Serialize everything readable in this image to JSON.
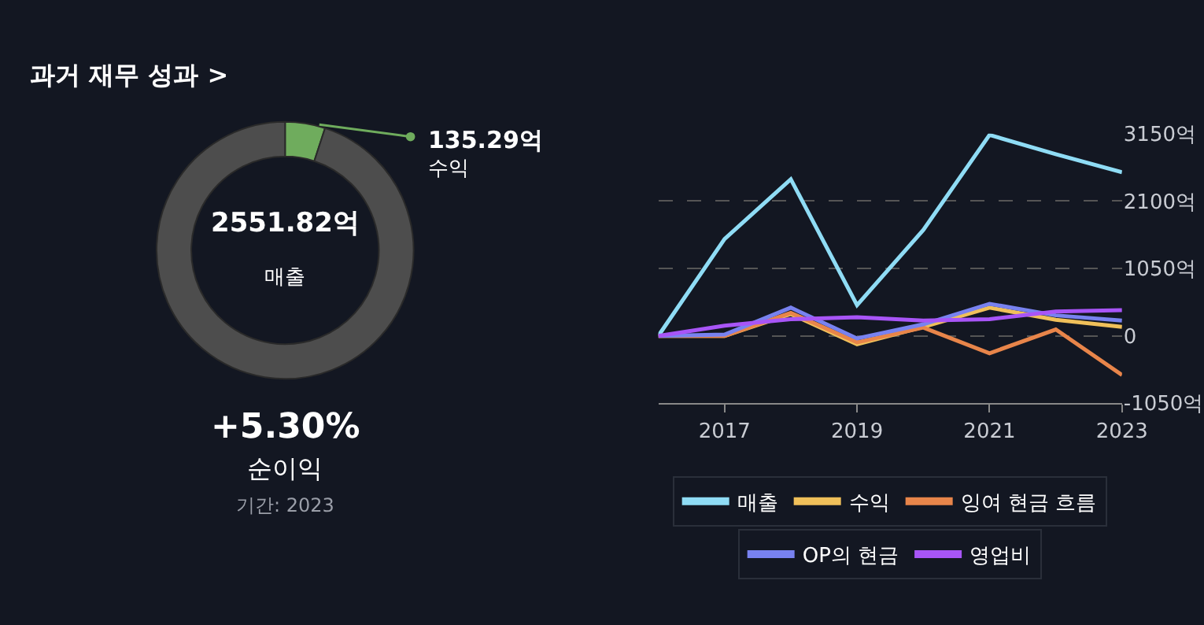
{
  "chart_data": [
    {
      "type": "donut",
      "title": "과거 재무 성과 >",
      "categories": [
        "수익",
        "매출"
      ],
      "values": [
        135.29,
        2551.82
      ],
      "value_labels": [
        "135.29억",
        "2551.82억"
      ],
      "colors": [
        "#6fac5d",
        "#4d4d4d"
      ],
      "annotations": [
        "+5.30%",
        "순이익",
        "기간: 2023"
      ]
    },
    {
      "type": "line",
      "x": [
        2016,
        2017,
        2018,
        2019,
        2020,
        2021,
        2022,
        2023
      ],
      "xlim": [
        2016,
        2023
      ],
      "xticks": [
        2017,
        2019,
        2021,
        2023
      ],
      "ylim": [
        -1050,
        3150
      ],
      "yticks": [
        {
          "value": -1050,
          "label": "-1050억"
        },
        0,
        {
          "value": 1050,
          "label": "1050억"
        },
        {
          "value": 2100,
          "label": "2100억"
        },
        {
          "value": 3150,
          "label": "3150억"
        }
      ],
      "grid": "y",
      "legend": "bottom",
      "line_style": "solid",
      "marker": "none",
      "series": [
        {
          "name": "매출",
          "color": "#8fdcf5",
          "values": [
            0,
            1510,
            2440,
            480,
            1650,
            3130,
            2830,
            2550
          ]
        },
        {
          "name": "수익",
          "color": "#f0c05a",
          "values": [
            0,
            0,
            340,
            -130,
            140,
            440,
            250,
            140
          ]
        },
        {
          "name": "잉여 현금 흐름",
          "color": "#e8854a",
          "values": [
            0,
            0,
            360,
            -100,
            130,
            -270,
            100,
            -610
          ]
        },
        {
          "name": "OP의 현금",
          "color": "#7882f0",
          "values": [
            0,
            20,
            440,
            -40,
            180,
            500,
            320,
            240
          ]
        },
        {
          "name": "영업비",
          "color": "#a855f7",
          "values": [
            0,
            160,
            260,
            290,
            240,
            260,
            380,
            400
          ]
        }
      ]
    }
  ]
}
